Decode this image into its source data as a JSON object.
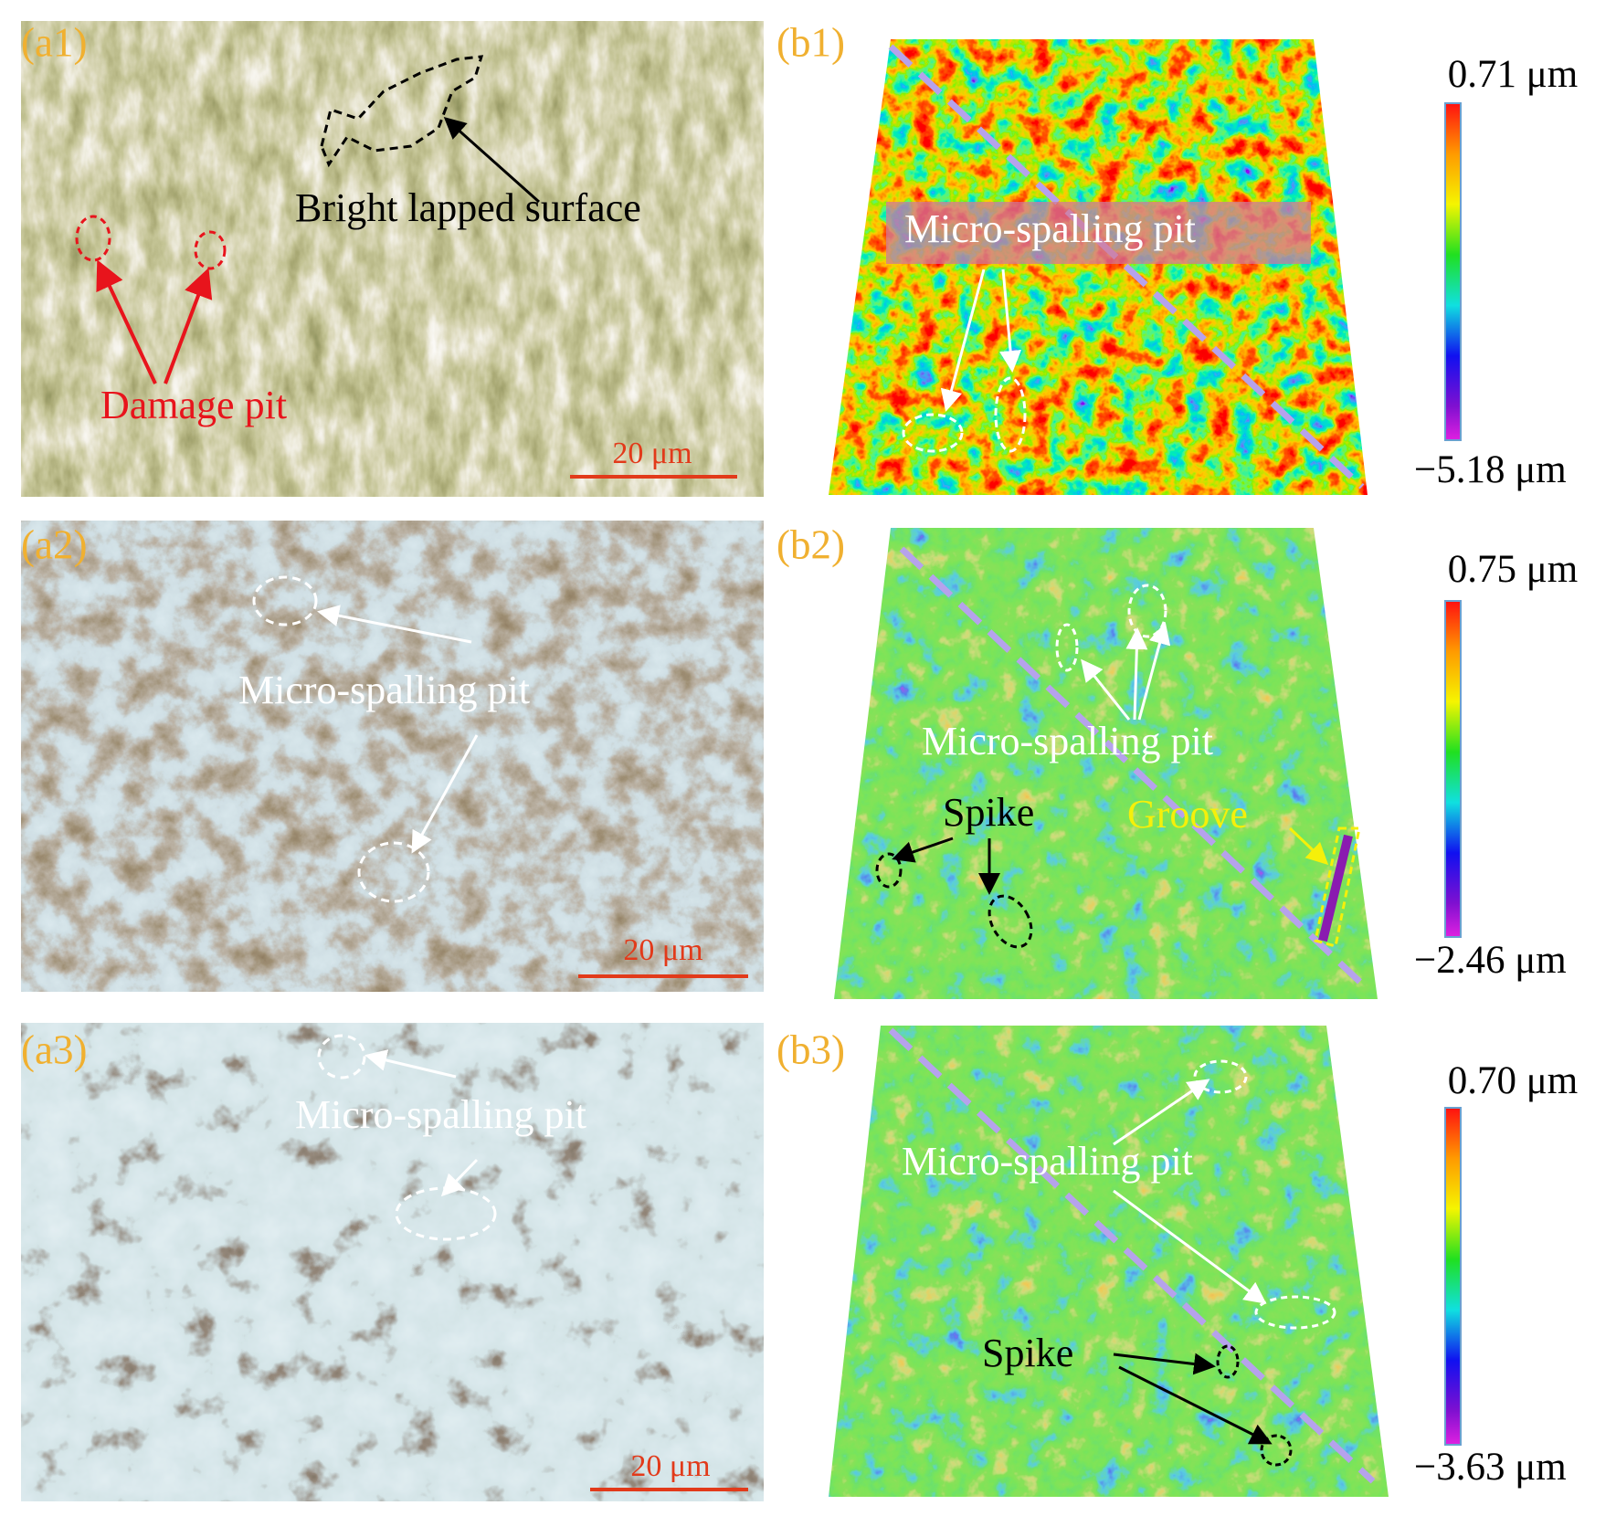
{
  "panels": {
    "a1": {
      "label": "(a1)",
      "annotations": [
        "Bright lapped surface",
        "Damage pit"
      ],
      "scale_bar": "20 μm"
    },
    "a2": {
      "label": "(a2)",
      "annotations": [
        "Micro-spalling pit"
      ],
      "scale_bar": "20 μm"
    },
    "a3": {
      "label": "(a3)",
      "annotations": [
        "Micro-spalling pit"
      ],
      "scale_bar": "20 μm"
    },
    "b1": {
      "label": "(b1)",
      "annotations": [
        "Micro-spalling pit"
      ],
      "colorbar": {
        "max": "0.71 μm",
        "min": "−5.18 μm"
      }
    },
    "b2": {
      "label": "(b2)",
      "annotations": [
        "Micro-spalling pit",
        "Spike",
        "Groove"
      ],
      "colorbar": {
        "max": "0.75 μm",
        "min": "−2.46 μm"
      }
    },
    "b3": {
      "label": "(b3)",
      "annotations": [
        "Micro-spalling pit",
        "Spike"
      ],
      "colorbar": {
        "max": "0.70 μm",
        "min": "−3.63 μm"
      }
    }
  }
}
